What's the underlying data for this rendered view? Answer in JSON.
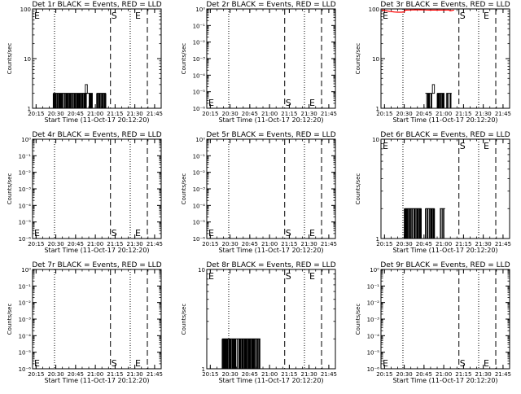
{
  "chart_data": [
    {
      "title": "Det 1r BLACK = Events, RED = LLD",
      "type": "line",
      "scale": "log",
      "ylabel": "Counts/sec",
      "xlabel": "Start Time (11-Oct-17 20:12:20)",
      "yticks": [
        "1",
        "10",
        "100"
      ],
      "ylim": [
        1,
        100
      ],
      "xticks": [
        "20:15",
        "20:30",
        "20:45",
        "21:00",
        "21:15",
        "21:30",
        "21:45"
      ],
      "markers": {
        "E_left": "E",
        "S": "S",
        "E": "E"
      },
      "marker_pos": "top",
      "has_events": true,
      "events_level": 2,
      "events_peak": 3,
      "red_lld": false
    },
    {
      "title": "Det 2r BLACK = Events, RED = LLD",
      "type": "line",
      "scale": "log",
      "ylabel": "Counts/sec",
      "xlabel": "Start Time (11-Oct-17 20:12:20)",
      "yticks": [
        "10⁰",
        "10⁻¹",
        "10⁻²",
        "10⁻³",
        "10⁻⁴",
        "10⁻⁵",
        "10⁻⁶"
      ],
      "ylim": [
        1e-06,
        1.0
      ],
      "xticks": [
        "20:15",
        "20:30",
        "20:45",
        "21:00",
        "21:15",
        "21:30",
        "21:45"
      ],
      "markers": {
        "E_left": "E",
        "S": "S",
        "E": "E"
      },
      "marker_pos": "bottom",
      "has_events": false,
      "red_lld": false
    },
    {
      "title": "Det 3r BLACK = Events, RED = LLD",
      "type": "line",
      "scale": "log",
      "ylabel": "Counts/sec",
      "xlabel": "Start Time (11-Oct-17 20:12:20)",
      "yticks": [
        "1",
        "10",
        "100"
      ],
      "ylim": [
        1,
        100
      ],
      "xticks": [
        "20:15",
        "20:30",
        "20:45",
        "21:00",
        "21:15",
        "21:30",
        "21:45"
      ],
      "markers": {
        "E_left": "E",
        "S": "S",
        "E": "E"
      },
      "marker_pos": "top",
      "has_events": true,
      "events_level": 2,
      "events_peak": 3,
      "red_lld": true,
      "red_color": "#ff0000"
    },
    {
      "title": "Det 4r BLACK = Events, RED = LLD",
      "type": "line",
      "scale": "log",
      "ylabel": "Counts/sec",
      "xlabel": "Start Time (11-Oct-17 20:12:20)",
      "yticks": [
        "10⁰",
        "10⁻¹",
        "10⁻²",
        "10⁻³",
        "10⁻⁴",
        "10⁻⁵",
        "10⁻⁶"
      ],
      "ylim": [
        1e-06,
        1.0
      ],
      "xticks": [
        "20:15",
        "20:30",
        "20:45",
        "21:00",
        "21:15",
        "21:30",
        "21:45"
      ],
      "markers": {
        "E_left": "E",
        "S": "S",
        "E": "E"
      },
      "marker_pos": "bottom",
      "has_events": false,
      "red_lld": false
    },
    {
      "title": "Det 5r BLACK = Events, RED = LLD",
      "type": "line",
      "scale": "log",
      "ylabel": "Counts/sec",
      "xlabel": "Start Time (11-Oct-17 20:12:20)",
      "yticks": [
        "10⁰",
        "10⁻¹",
        "10⁻²",
        "10⁻³",
        "10⁻⁴",
        "10⁻⁵",
        "10⁻⁶"
      ],
      "ylim": [
        1e-06,
        1.0
      ],
      "xticks": [
        "20:15",
        "20:30",
        "20:45",
        "21:00",
        "21:15",
        "21:30",
        "21:45"
      ],
      "markers": {
        "E_left": "E",
        "S": "S",
        "E": "E"
      },
      "marker_pos": "bottom",
      "has_events": false,
      "red_lld": false
    },
    {
      "title": "Det 6r BLACK = Events, RED = LLD",
      "type": "line",
      "scale": "log",
      "ylabel": "Counts/sec",
      "xlabel": "Start Time (11-Oct-17 20:12:20)",
      "yticks": [
        "1",
        "10"
      ],
      "ylim": [
        1,
        10
      ],
      "xticks": [
        "20:15",
        "20:30",
        "20:45",
        "21:00",
        "21:15",
        "21:30",
        "21:45"
      ],
      "markers": {
        "E_left": "E",
        "S": "S",
        "E": "E"
      },
      "marker_pos": "top",
      "has_events": true,
      "events_level": 2,
      "events_peak": 2,
      "red_lld": false
    },
    {
      "title": "Det 7r BLACK = Events, RED = LLD",
      "type": "line",
      "scale": "log",
      "ylabel": "Counts/sec",
      "xlabel": "Start Time (11-Oct-17 20:12:20)",
      "yticks": [
        "10⁰",
        "10⁻¹",
        "10⁻²",
        "10⁻³",
        "10⁻⁴",
        "10⁻⁵",
        "10⁻⁶"
      ],
      "ylim": [
        1e-06,
        1.0
      ],
      "xticks": [
        "20:15",
        "20:30",
        "20:45",
        "21:00",
        "21:15",
        "21:30",
        "21:45"
      ],
      "markers": {
        "E_left": "E",
        "S": "S",
        "E": "E"
      },
      "marker_pos": "bottom",
      "has_events": false,
      "red_lld": false
    },
    {
      "title": "Det 8r BLACK = Events, RED = LLD",
      "type": "line",
      "scale": "log",
      "ylabel": "Counts/sec",
      "xlabel": "Start Time (11-Oct-17 20:12:20)",
      "yticks": [
        "1",
        "10"
      ],
      "ylim": [
        1,
        10
      ],
      "xticks": [
        "20:15",
        "20:30",
        "20:45",
        "21:00",
        "21:15",
        "21:30",
        "21:45"
      ],
      "markers": {
        "E_left": "E",
        "S": "S",
        "E": "E"
      },
      "marker_pos": "top",
      "has_events": true,
      "events_level": 2,
      "events_peak": 2,
      "red_lld": false
    },
    {
      "title": "Det 9r BLACK = Events, RED = LLD",
      "type": "line",
      "scale": "log",
      "ylabel": "Counts/sec",
      "xlabel": "Start Time (11-Oct-17 20:12:20)",
      "yticks": [
        "10⁰",
        "10⁻¹",
        "10⁻²",
        "10⁻³",
        "10⁻⁴",
        "10⁻⁵",
        "10⁻⁶"
      ],
      "ylim": [
        1e-06,
        1.0
      ],
      "xticks": [
        "20:15",
        "20:30",
        "20:45",
        "21:00",
        "21:15",
        "21:30",
        "21:45"
      ],
      "markers": {
        "E_left": "E",
        "S": "S",
        "E": "E"
      },
      "marker_pos": "bottom",
      "has_events": false,
      "red_lld": false
    }
  ]
}
